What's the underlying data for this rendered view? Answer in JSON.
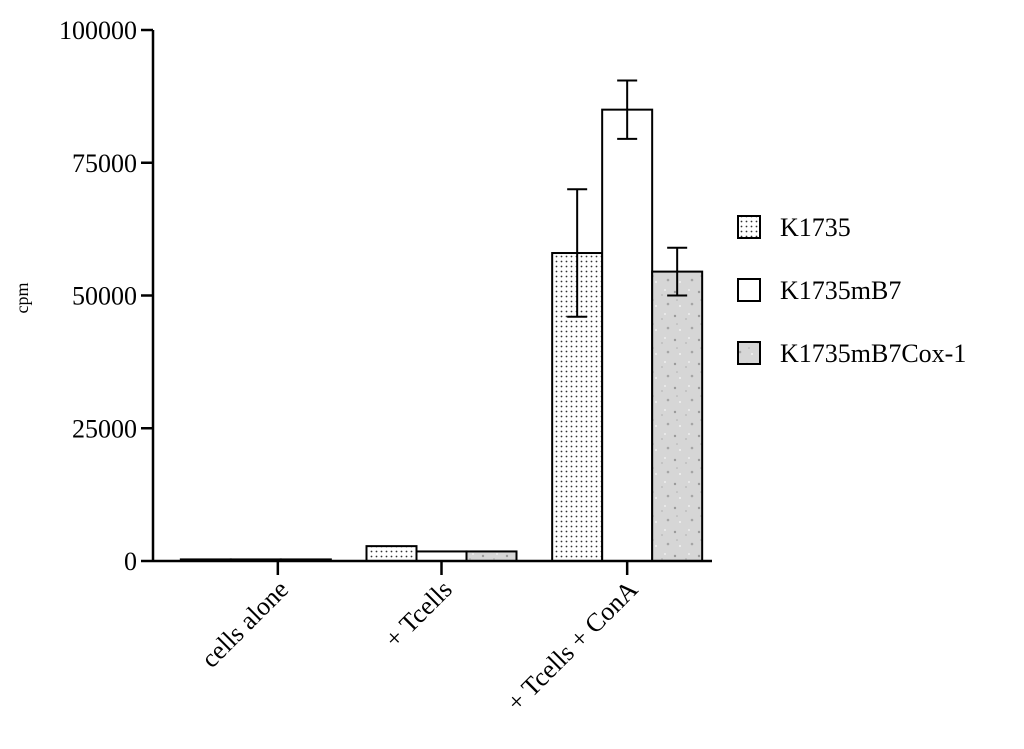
{
  "chart_data": {
    "type": "bar",
    "title": "",
    "xlabel": "",
    "ylabel": "cpm",
    "ylim": [
      0,
      100000
    ],
    "yticks": [
      0,
      25000,
      50000,
      75000,
      100000
    ],
    "categories": [
      "cells alone",
      "+ Tcells",
      "+ Tcells + ConA"
    ],
    "series": [
      {
        "name": "K1735",
        "values": [
          300,
          2800,
          58000
        ],
        "error": [
          0,
          0,
          12000
        ],
        "pattern": "dots",
        "color": "#e8e8e8"
      },
      {
        "name": "K1735mB7",
        "values": [
          300,
          1800,
          85000
        ],
        "error": [
          0,
          0,
          5500
        ],
        "pattern": "none",
        "color": "#ffffff"
      },
      {
        "name": "K1735mB7Cox-1",
        "values": [
          300,
          1800,
          54500
        ],
        "error": [
          0,
          0,
          4500
        ],
        "pattern": "speckle",
        "color": "#d4d4d4"
      }
    ],
    "grid": false,
    "legend_position": "right"
  }
}
